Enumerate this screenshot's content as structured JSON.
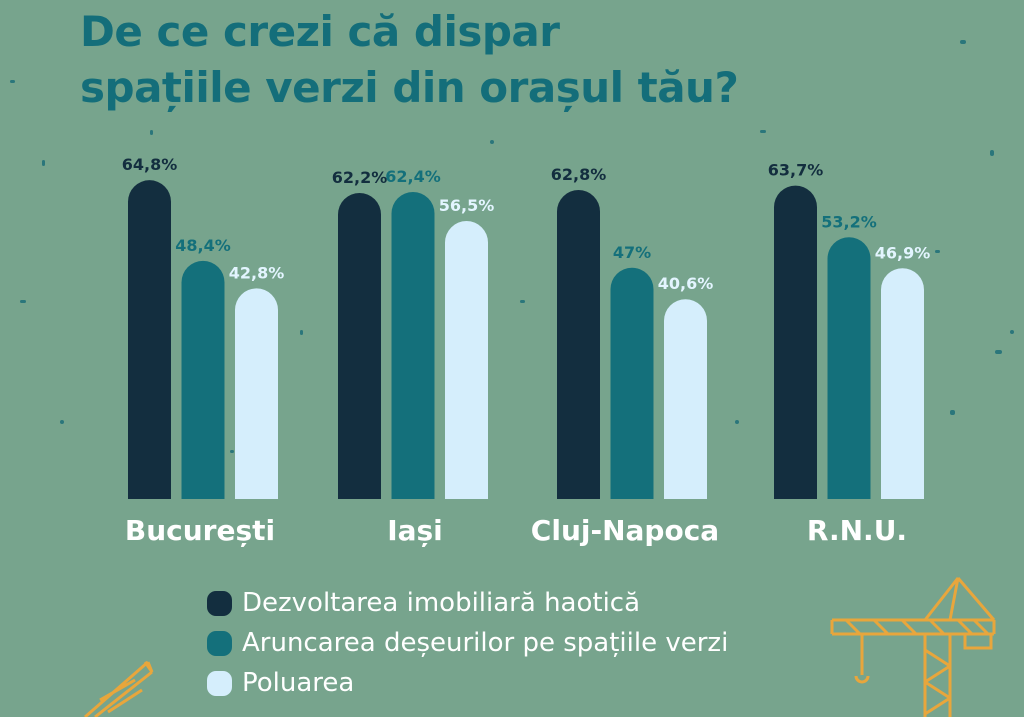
{
  "title_lines": [
    "De ce crezi că dispar",
    "spațiile verzi din orașul tău?"
  ],
  "colors": {
    "background": "#77a48d",
    "title": "#146e7a",
    "value_label": "#ffffff",
    "city_label": "#ffffff",
    "crane": "#e8a63c"
  },
  "chart_data": {
    "type": "bar",
    "categories": [
      "București",
      "Iași",
      "Cluj-Napoca",
      "R.N.U."
    ],
    "series": [
      {
        "name": "Dezvoltarea imobiliară haotică",
        "color": "#132e3f",
        "label_color": "#132e3f",
        "values": [
          64.8,
          62.2,
          62.8,
          63.7
        ],
        "labels": [
          "64,8%",
          "62,2%",
          "62,8%",
          "63,7%"
        ]
      },
      {
        "name": "Aruncarea deșeurilor pe spațiile verzi",
        "color": "#14707b",
        "label_color": "#14707b",
        "values": [
          48.4,
          62.4,
          47,
          53.2
        ],
        "labels": [
          "48,4%",
          "62,4%",
          "47%",
          "53,2%"
        ]
      },
      {
        "name": "Poluarea",
        "color": "#d5eefc",
        "label_color": "#e3f5ff",
        "values": [
          42.8,
          56.5,
          40.6,
          46.9
        ],
        "labels": [
          "42,8%",
          "56,5%",
          "40,6%",
          "46,9%"
        ]
      }
    ],
    "ylim": [
      0,
      70
    ],
    "grid": false,
    "legend": "bottom"
  },
  "legend": {
    "items": [
      {
        "label": "Dezvoltarea imobiliară haotică",
        "color": "#132e3f"
      },
      {
        "label": "Aruncarea deșeurilor pe spațiile verzi",
        "color": "#14707b"
      },
      {
        "label": "Poluarea",
        "color": "#d5eefc"
      }
    ]
  }
}
